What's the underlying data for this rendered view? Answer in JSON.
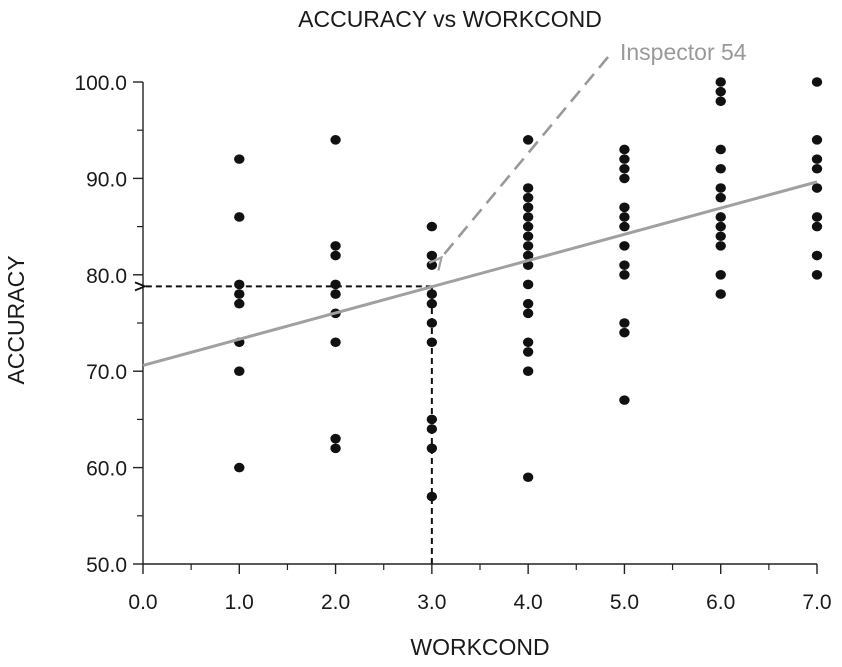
{
  "chart_data": {
    "type": "scatter",
    "title": "ACCURACY vs WORKCOND",
    "xlabel": "WORKCOND",
    "ylabel": "ACCURACY",
    "xlim": [
      0,
      7
    ],
    "ylim": [
      50,
      100
    ],
    "x_ticks": [
      "0.0",
      "1.0",
      "2.0",
      "3.0",
      "4.0",
      "5.0",
      "6.0",
      "7.0"
    ],
    "y_ticks": [
      "50.0",
      "60.0",
      "70.0",
      "80.0",
      "90.0",
      "100.0"
    ],
    "grid": false,
    "point_color": "#111111",
    "points": [
      {
        "x": 1,
        "y": 92
      },
      {
        "x": 1,
        "y": 86
      },
      {
        "x": 1,
        "y": 79
      },
      {
        "x": 1,
        "y": 78
      },
      {
        "x": 1,
        "y": 77
      },
      {
        "x": 1,
        "y": 73
      },
      {
        "x": 1,
        "y": 70
      },
      {
        "x": 1,
        "y": 60
      },
      {
        "x": 2,
        "y": 94
      },
      {
        "x": 2,
        "y": 83
      },
      {
        "x": 2,
        "y": 82
      },
      {
        "x": 2,
        "y": 79
      },
      {
        "x": 2,
        "y": 78
      },
      {
        "x": 2,
        "y": 76
      },
      {
        "x": 2,
        "y": 73
      },
      {
        "x": 2,
        "y": 63
      },
      {
        "x": 2,
        "y": 62
      },
      {
        "x": 3,
        "y": 85
      },
      {
        "x": 3,
        "y": 82
      },
      {
        "x": 3,
        "y": 81
      },
      {
        "x": 3,
        "y": 78
      },
      {
        "x": 3,
        "y": 77
      },
      {
        "x": 3,
        "y": 75
      },
      {
        "x": 3,
        "y": 73
      },
      {
        "x": 3,
        "y": 65
      },
      {
        "x": 3,
        "y": 64
      },
      {
        "x": 3,
        "y": 62
      },
      {
        "x": 3,
        "y": 57
      },
      {
        "x": 4,
        "y": 94
      },
      {
        "x": 4,
        "y": 89
      },
      {
        "x": 4,
        "y": 88
      },
      {
        "x": 4,
        "y": 87
      },
      {
        "x": 4,
        "y": 86
      },
      {
        "x": 4,
        "y": 85
      },
      {
        "x": 4,
        "y": 84
      },
      {
        "x": 4,
        "y": 83
      },
      {
        "x": 4,
        "y": 82
      },
      {
        "x": 4,
        "y": 81
      },
      {
        "x": 4,
        "y": 79
      },
      {
        "x": 4,
        "y": 77
      },
      {
        "x": 4,
        "y": 76
      },
      {
        "x": 4,
        "y": 73
      },
      {
        "x": 4,
        "y": 72
      },
      {
        "x": 4,
        "y": 70
      },
      {
        "x": 4,
        "y": 59
      },
      {
        "x": 5,
        "y": 93
      },
      {
        "x": 5,
        "y": 92
      },
      {
        "x": 5,
        "y": 91
      },
      {
        "x": 5,
        "y": 90
      },
      {
        "x": 5,
        "y": 87
      },
      {
        "x": 5,
        "y": 86
      },
      {
        "x": 5,
        "y": 85
      },
      {
        "x": 5,
        "y": 83
      },
      {
        "x": 5,
        "y": 81
      },
      {
        "x": 5,
        "y": 80
      },
      {
        "x": 5,
        "y": 75
      },
      {
        "x": 5,
        "y": 74
      },
      {
        "x": 5,
        "y": 67
      },
      {
        "x": 6,
        "y": 100
      },
      {
        "x": 6,
        "y": 99
      },
      {
        "x": 6,
        "y": 98
      },
      {
        "x": 6,
        "y": 93
      },
      {
        "x": 6,
        "y": 91
      },
      {
        "x": 6,
        "y": 89
      },
      {
        "x": 6,
        "y": 88
      },
      {
        "x": 6,
        "y": 86
      },
      {
        "x": 6,
        "y": 85
      },
      {
        "x": 6,
        "y": 84
      },
      {
        "x": 6,
        "y": 83
      },
      {
        "x": 6,
        "y": 80
      },
      {
        "x": 6,
        "y": 78
      },
      {
        "x": 7,
        "y": 100
      },
      {
        "x": 7,
        "y": 94
      },
      {
        "x": 7,
        "y": 92
      },
      {
        "x": 7,
        "y": 91
      },
      {
        "x": 7,
        "y": 89
      },
      {
        "x": 7,
        "y": 86
      },
      {
        "x": 7,
        "y": 85
      },
      {
        "x": 7,
        "y": 82
      },
      {
        "x": 7,
        "y": 80
      }
    ],
    "regression_line": {
      "color": "#a0a0a0",
      "intercept": 70.6,
      "slope": 2.72,
      "x_range": [
        0,
        7
      ]
    },
    "prediction_guide": {
      "x": 3,
      "y": 78.8,
      "color": "#111111"
    },
    "annotations": [
      {
        "text": "Inspector  54",
        "color": "#999999",
        "points_to": {
          "x": 3.1,
          "y": 81.8
        }
      }
    ]
  }
}
